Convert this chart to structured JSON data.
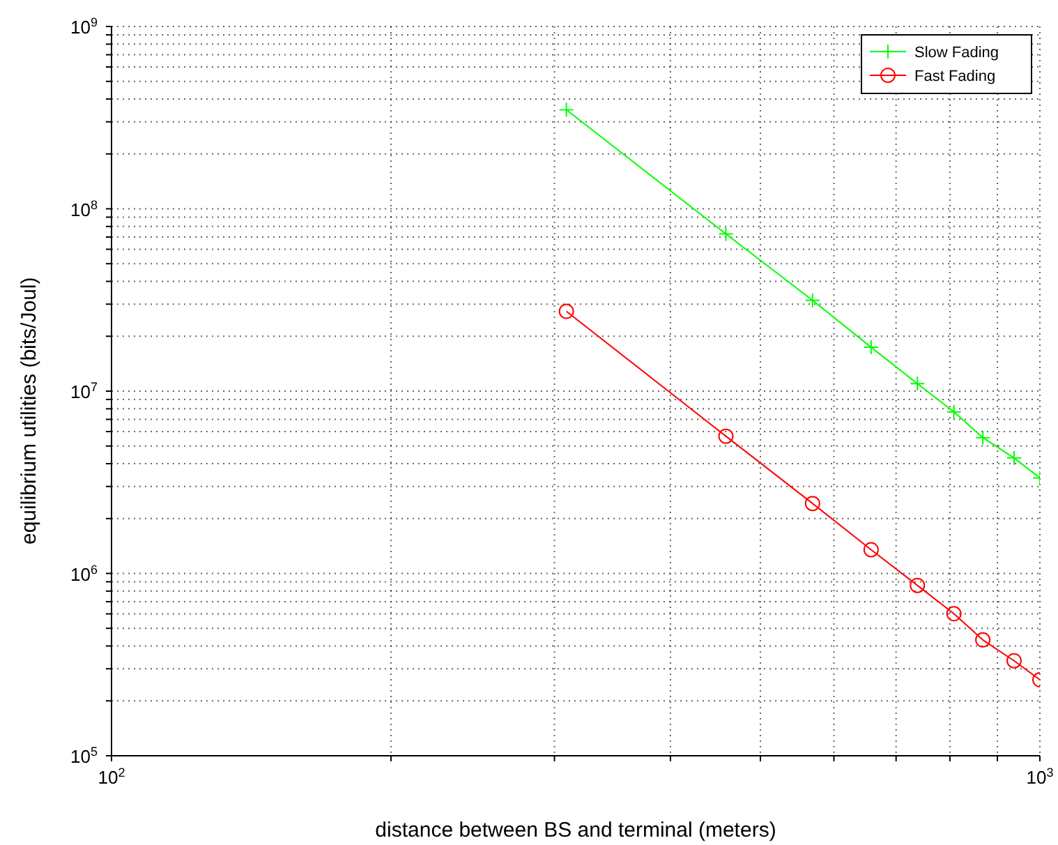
{
  "chart_data": {
    "type": "line",
    "xlabel": "distance between BS and terminal (meters)",
    "ylabel": "equilibrium utilities (bits/Joul)",
    "log": "xy",
    "grid": true,
    "legend": "top right",
    "line_style": "solid",
    "x": [
      309,
      459,
      569,
      658,
      738,
      808,
      868,
      938,
      1000
    ],
    "series": [
      {
        "name": "Slow Fading",
        "color": "#00ff00",
        "marker": "cross",
        "values": [
          349000000,
          72800000,
          31500000,
          17400000,
          11000000,
          7690000,
          5560000,
          4300000,
          3340000
        ]
      },
      {
        "name": "Fast Fading",
        "color": "#ff0000",
        "marker": "circle",
        "values": [
          27400000,
          5660000,
          2420000,
          1350000,
          860000,
          601000,
          432000,
          332000,
          261000
        ]
      }
    ],
    "xlim": [
      100,
      1000
    ],
    "xticks": [
      {
        "value": 100,
        "label": "10$^{2}$"
      },
      {
        "value": 200,
        "label": null
      },
      {
        "value": 300,
        "label": null
      },
      {
        "value": 400,
        "label": null
      },
      {
        "value": 500,
        "label": null
      },
      {
        "value": 600,
        "label": null
      },
      {
        "value": 700,
        "label": null
      },
      {
        "value": 800,
        "label": null
      },
      {
        "value": 900,
        "label": null
      },
      {
        "value": 1000,
        "label": "10$^{3}$"
      }
    ],
    "ylim": [
      100000,
      1000000000
    ],
    "yticks": [
      {
        "value": 100000,
        "label": "10$^{5}$"
      },
      {
        "value": 200000,
        "label": null
      },
      {
        "value": 300000,
        "label": null
      },
      {
        "value": 400000,
        "label": null
      },
      {
        "value": 500000,
        "label": null
      },
      {
        "value": 600000,
        "label": null
      },
      {
        "value": 700000,
        "label": null
      },
      {
        "value": 800000,
        "label": null
      },
      {
        "value": 900000,
        "label": null
      },
      {
        "value": 1000000,
        "label": "10$^{6}$"
      },
      {
        "value": 2000000,
        "label": null
      },
      {
        "value": 3000000,
        "label": null
      },
      {
        "value": 4000000,
        "label": null
      },
      {
        "value": 5000000,
        "label": null
      },
      {
        "value": 6000000,
        "label": null
      },
      {
        "value": 7000000,
        "label": null
      },
      {
        "value": 8000000,
        "label": null
      },
      {
        "value": 9000000,
        "label": null
      },
      {
        "value": 10000000,
        "label": "10$^{7}$"
      },
      {
        "value": 20000000,
        "label": null
      },
      {
        "value": 30000000,
        "label": null
      },
      {
        "value": 40000000,
        "label": null
      },
      {
        "value": 50000000,
        "label": null
      },
      {
        "value": 60000000,
        "label": null
      },
      {
        "value": 70000000,
        "label": null
      },
      {
        "value": 80000000,
        "label": null
      },
      {
        "value": 90000000,
        "label": null
      },
      {
        "value": 100000000,
        "label": "10$^{8}$"
      },
      {
        "value": 200000000,
        "label": null
      },
      {
        "value": 300000000,
        "label": null
      },
      {
        "value": 400000000,
        "label": null
      },
      {
        "value": 500000000,
        "label": null
      },
      {
        "value": 600000000,
        "label": null
      },
      {
        "value": 700000000,
        "label": null
      },
      {
        "value": 800000000,
        "label": null
      },
      {
        "value": 900000000,
        "label": null
      },
      {
        "value": 1000000000,
        "label": "10$^{9}$"
      }
    ]
  }
}
